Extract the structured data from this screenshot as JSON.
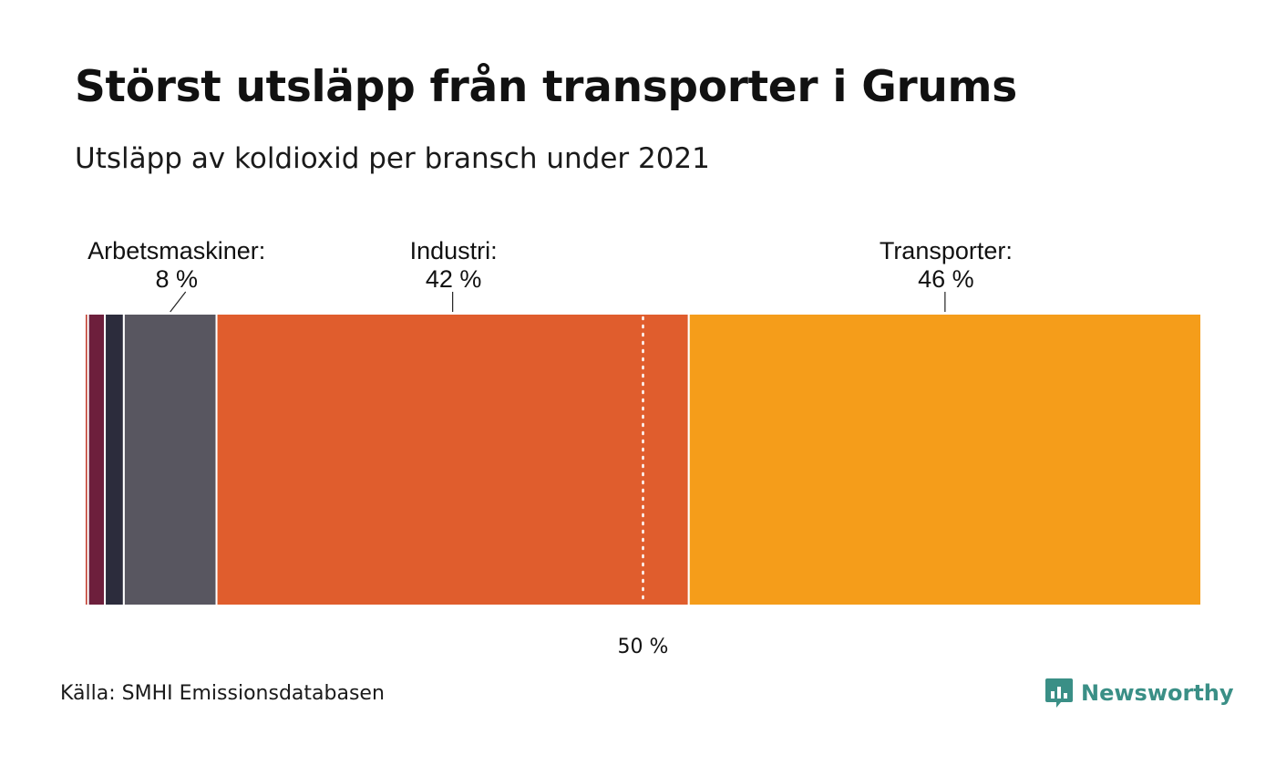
{
  "title": "Störst utsläpp från transporter i Grums",
  "subtitle": "Utsläpp av koldioxid per bransch under 2021",
  "source": "Källa: SMHI Emissionsdatabasen",
  "brand": {
    "name": "Newsworthy",
    "color": "#3a8f86",
    "icon": "bar-chart-speech-bubble-icon"
  },
  "chart_data": {
    "type": "bar",
    "orientation": "horizontal-stacked-100",
    "xlim": [
      0,
      100
    ],
    "reference_line": {
      "value": 50,
      "label": "50 %",
      "style": "dotted"
    },
    "segments": [
      {
        "value": 0.3,
        "color": "#c0392b"
      },
      {
        "value": 1.5,
        "color": "#6d1f3c"
      },
      {
        "value": 1.7,
        "color": "#2c2c3c"
      },
      {
        "value": 8.3,
        "color": "#585660",
        "name": "Arbetsmaskiner:",
        "label": "8 %"
      },
      {
        "value": 42.3,
        "color": "#e05d2d",
        "name": "Industri:",
        "label": "42 %"
      },
      {
        "value": 45.9,
        "color": "#f59d1a",
        "name": "Transporter:",
        "label": "46 %"
      }
    ]
  }
}
